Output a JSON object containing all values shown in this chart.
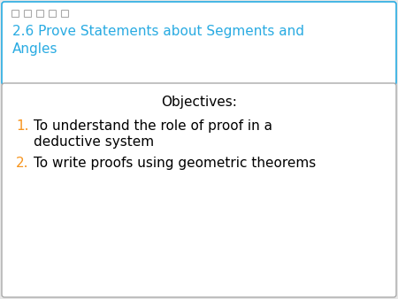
{
  "title_line1": "2.6 Prove Statements about Segments and",
  "title_line2": "Angles",
  "title_color": "#29ABE2",
  "title_bg_color": "#FFFFFF",
  "title_border_color": "#29ABE2",
  "objectives_title": "Objectives:",
  "objectives_title_color": "#000000",
  "item_number_color": "#F7941D",
  "item_text_color": "#000000",
  "body_bg_color": "#FFFFFF",
  "body_border_color": "#AAAAAA",
  "background_color": "#E8E8E8",
  "dots_color": "#AAAAAA",
  "title_fontsize": 11,
  "objectives_fontsize": 11,
  "item_fontsize": 11
}
